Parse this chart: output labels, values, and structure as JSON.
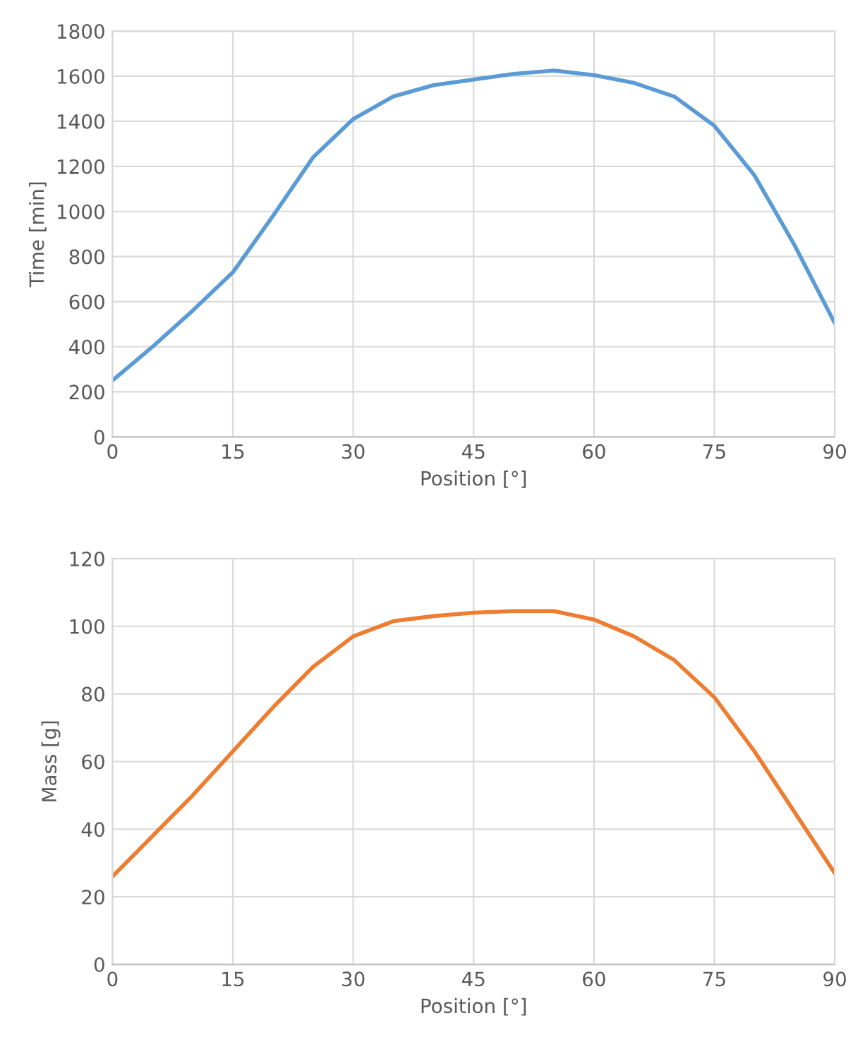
{
  "chart_data": [
    {
      "type": "line",
      "xlabel": "Position [°]",
      "ylabel": "Time [min]",
      "x": [
        0,
        5,
        10,
        15,
        20,
        25,
        30,
        35,
        40,
        45,
        50,
        55,
        60,
        65,
        70,
        75,
        80,
        85,
        90
      ],
      "series": [
        {
          "color": "#5b9bd5",
          "values": [
            250,
            400,
            560,
            730,
            980,
            1240,
            1410,
            1510,
            1560,
            1585,
            1610,
            1625,
            1605,
            1570,
            1510,
            1380,
            1160,
            850,
            505
          ]
        }
      ],
      "xlim": [
        0,
        90
      ],
      "xticks": [
        0,
        15,
        30,
        45,
        60,
        75,
        90
      ],
      "ylim": [
        0,
        1800
      ],
      "yticks": [
        0,
        200,
        400,
        600,
        800,
        1000,
        1200,
        1400,
        1600,
        1800
      ],
      "grid": true,
      "legend": false,
      "marker": "none",
      "line_style": "solid"
    },
    {
      "type": "line",
      "xlabel": "Position [°]",
      "ylabel": "Mass [g]",
      "x": [
        0,
        5,
        10,
        15,
        20,
        25,
        30,
        35,
        40,
        45,
        50,
        55,
        60,
        65,
        70,
        75,
        80,
        85,
        90
      ],
      "series": [
        {
          "color": "#ed7d31",
          "values": [
            26,
            38,
            50,
            63,
            76,
            88,
            97,
            101.5,
            103,
            104,
            104.5,
            104.5,
            102,
            97,
            90,
            79,
            63,
            45,
            27
          ]
        }
      ],
      "xlim": [
        0,
        90
      ],
      "xticks": [
        0,
        15,
        30,
        45,
        60,
        75,
        90
      ],
      "ylim": [
        0,
        120
      ],
      "yticks": [
        0,
        20,
        40,
        60,
        80,
        100,
        120
      ],
      "grid": true,
      "legend": false,
      "marker": "none",
      "line_style": "solid"
    }
  ]
}
